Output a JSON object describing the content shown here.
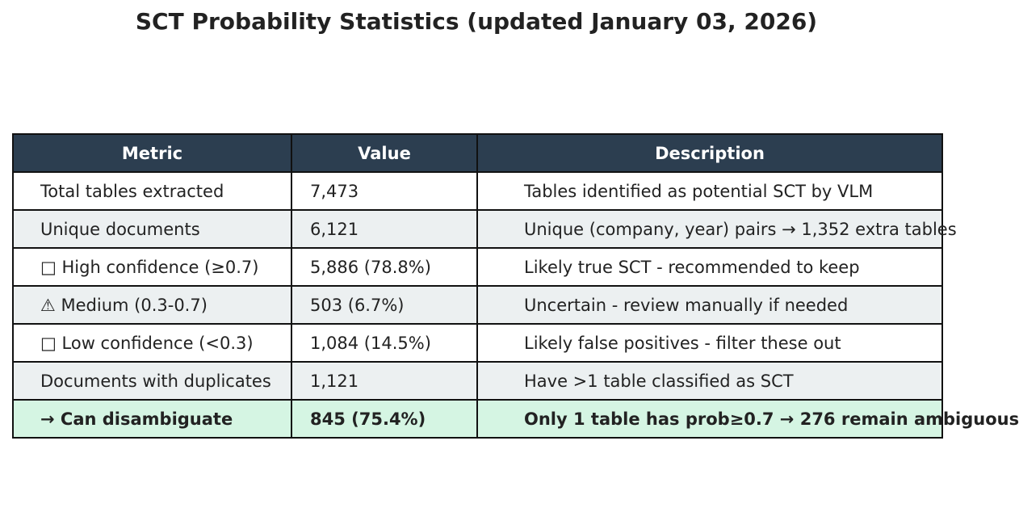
{
  "title": "SCT Probability Statistics (updated January 03, 2026)",
  "colors": {
    "header_bg": "#2c3e50",
    "header_text": "#ffffff",
    "row_alt": "#ecf0f1",
    "row_highlight": "#d5f5e3",
    "border": "#111111"
  },
  "chart_data": {
    "type": "table",
    "title": "SCT Probability Statistics (updated January 03, 2026)",
    "columns": [
      "Metric",
      "Value",
      "Description"
    ],
    "rows": [
      {
        "metric": "Total tables extracted",
        "value": "7,473",
        "description": "Tables identified as potential SCT by VLM",
        "style": "normal"
      },
      {
        "metric": "Unique documents",
        "value": "6,121",
        "description": "Unique (company, year) pairs → 1,352 extra tables",
        "style": "alt"
      },
      {
        "metric": "□ High confidence (≥0.7)",
        "value": "5,886 (78.8%)",
        "description": "Likely true SCT - recommended to keep",
        "style": "normal"
      },
      {
        "metric": "⚠ Medium (0.3-0.7)",
        "value": "503 (6.7%)",
        "description": "Uncertain - review manually if needed",
        "style": "alt"
      },
      {
        "metric": "□ Low confidence (<0.3)",
        "value": "1,084 (14.5%)",
        "description": "Likely false positives - filter these out",
        "style": "normal"
      },
      {
        "metric": "Documents with duplicates",
        "value": "1,121",
        "description": "Have >1 table classified as SCT",
        "style": "alt"
      },
      {
        "metric": "→ Can disambiguate",
        "value": "845 (75.4%)",
        "description": "Only 1 table has prob≥0.7 → 276 remain ambiguous",
        "style": "highlight"
      }
    ]
  }
}
